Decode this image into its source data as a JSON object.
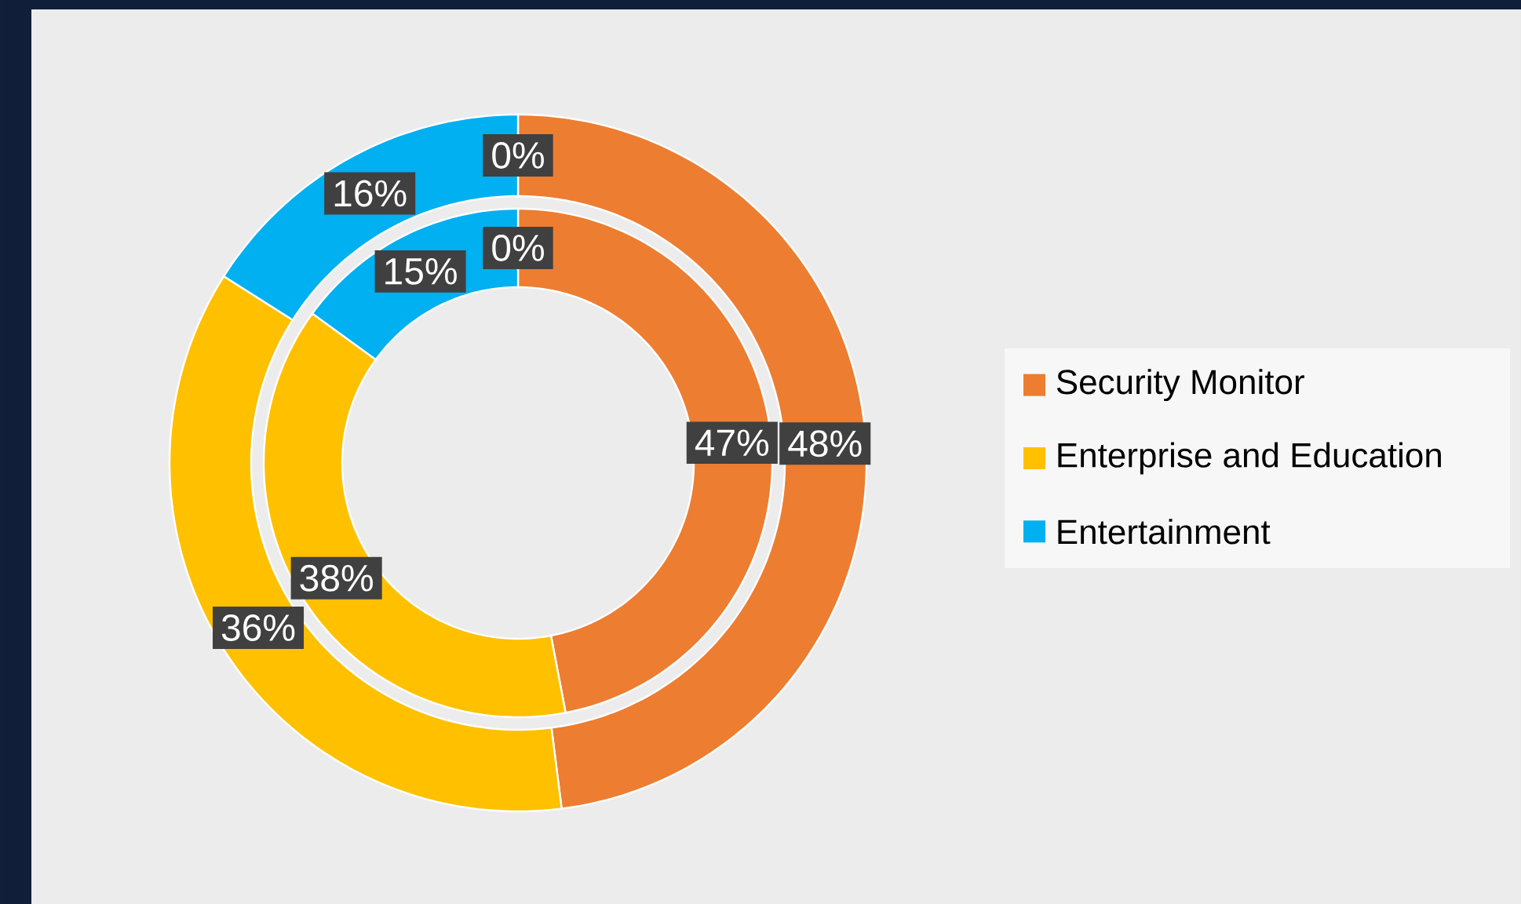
{
  "chart_data": {
    "type": "donut",
    "categories": [
      "Security Monitor",
      "Enterprise and Education",
      "Entertainment",
      null
    ],
    "colors": [
      "#ED7D31",
      "#FFC000",
      "#00B0F0",
      "#A5A5A5"
    ],
    "series": [
      {
        "values": [
          48,
          36,
          16,
          0
        ],
        "value_labels": [
          "48%",
          "36%",
          "16%",
          "0%"
        ]
      },
      {
        "values": [
          47,
          38,
          15,
          0
        ],
        "value_labels": [
          "47%",
          "38%",
          "15%",
          "0%"
        ]
      }
    ],
    "legend": "right"
  }
}
